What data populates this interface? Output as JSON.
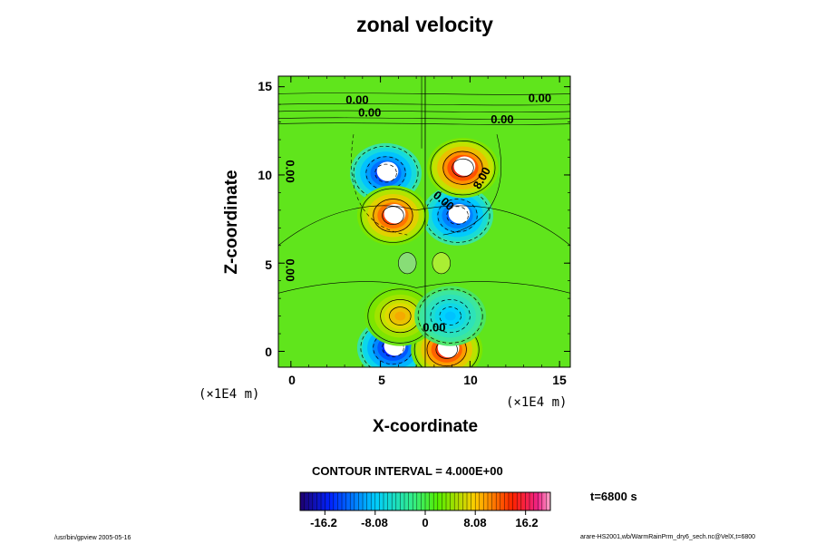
{
  "chart_data": {
    "type": "heatmap",
    "title": "zonal velocity",
    "xlabel": "X-coordinate",
    "ylabel": "Z-coordinate",
    "x_unit": "(×1E4 m)",
    "y_unit": "(×1E4 m)",
    "xlim": [
      -0.7,
      15.6
    ],
    "ylim": [
      -0.9,
      15.6
    ],
    "x_ticks": [
      "0",
      "5",
      "10",
      "15"
    ],
    "y_ticks": [
      "0",
      "5",
      "10",
      "15"
    ],
    "contour_interval_text": "CONTOUR INTERVAL = 4.000E+00",
    "time_text": "t=6800 s",
    "colorbar": {
      "range": [
        -20.2,
        20.2
      ],
      "tick_labels": [
        "-16.2",
        "-8.08",
        "0",
        "8.08",
        "16.2"
      ],
      "tick_values": [
        -16.2,
        -8.08,
        0,
        8.08,
        16.2
      ]
    },
    "contour_labels": [
      {
        "text": "0.00",
        "x": 3.7,
        "z": 14.2
      },
      {
        "text": "0.00",
        "x": 4.4,
        "z": 13.5
      },
      {
        "text": "0.00",
        "x": 13.9,
        "z": 14.3
      },
      {
        "text": "0.00",
        "x": 11.8,
        "z": 13.1
      },
      {
        "text": "0.00",
        "x": -0.1,
        "z": 10.2,
        "rotate": 90
      },
      {
        "text": "0.00",
        "x": -0.1,
        "z": 4.6,
        "rotate": 90
      },
      {
        "text": "8.00",
        "x": 10.7,
        "z": 9.8,
        "rotate": -60
      },
      {
        "text": "0.00",
        "x": 8.5,
        "z": 8.5,
        "rotate": 40
      },
      {
        "text": "0.00",
        "x": 8.0,
        "z": 1.3
      }
    ],
    "features": [
      {
        "kind": "negative",
        "peak": -16,
        "x": 5.3,
        "z": 10.1
      },
      {
        "kind": "negative",
        "peak": -18,
        "x": 5.7,
        "z": 0.2
      },
      {
        "kind": "negative",
        "peak": -15,
        "x": 9.3,
        "z": 7.7
      },
      {
        "kind": "positive",
        "peak": 18,
        "x": 9.6,
        "z": 10.4
      },
      {
        "kind": "positive",
        "peak": 16,
        "x": 5.7,
        "z": 7.7
      },
      {
        "kind": "positive",
        "peak": 17,
        "x": 8.7,
        "z": 0.1
      },
      {
        "kind": "positive",
        "peak": 9,
        "x": 6.1,
        "z": 2.0
      },
      {
        "kind": "negative",
        "peak": -7,
        "x": 8.9,
        "z": 2.0
      }
    ]
  },
  "footer": {
    "left": "/usr/bin/gpview 2005-05-16",
    "right": "arare-HS2001,wb/WarmRainPrm_dry6_sech.nc@VelX,t=6800"
  }
}
